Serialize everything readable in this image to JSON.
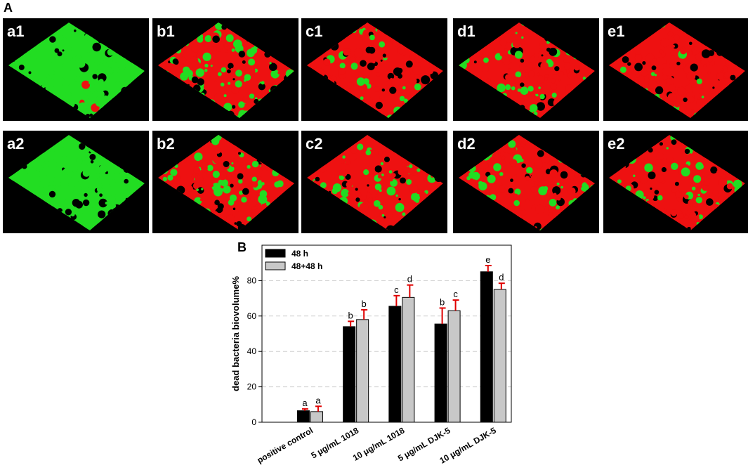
{
  "panel_a_label": "A",
  "panel_b_label": "B",
  "image_tiles": [
    {
      "label": "a1"
    },
    {
      "label": "b1"
    },
    {
      "label": "c1"
    },
    {
      "label": "d1"
    },
    {
      "label": "e1"
    },
    {
      "label": "a2"
    },
    {
      "label": "b2"
    },
    {
      "label": "c2"
    },
    {
      "label": "d2"
    },
    {
      "label": "e2"
    }
  ],
  "colors": {
    "live": "#22dd22",
    "dead": "#ee1111",
    "bg": "#000000"
  },
  "chart_data": {
    "type": "bar",
    "title": "",
    "xlabel": "",
    "ylabel": "dead bacteria biovolume%",
    "ylim": [
      0,
      100
    ],
    "yticks": [
      0,
      20,
      40,
      60,
      80
    ],
    "grid": true,
    "legend_position": "top-left",
    "categories": [
      "positive control",
      "5 μg/mL 1018",
      "10 μg/mL 1018",
      "5 μg/mL DJK-5",
      "10 μg/mL DJK-5"
    ],
    "series": [
      {
        "name": "48 h",
        "color": "#000000",
        "values": [
          6.5,
          54,
          65.5,
          55.5,
          85
        ],
        "errors": [
          1,
          3,
          6,
          9,
          3.5
        ],
        "letters": [
          "a",
          "b",
          "c",
          "b",
          "e"
        ]
      },
      {
        "name": "48+48 h",
        "color": "#c8c8c8",
        "values": [
          6,
          58,
          70.5,
          63,
          75
        ],
        "errors": [
          3,
          5.5,
          7,
          6,
          3.5
        ],
        "letters": [
          "a",
          "b",
          "d",
          "c",
          "d"
        ]
      }
    ]
  }
}
